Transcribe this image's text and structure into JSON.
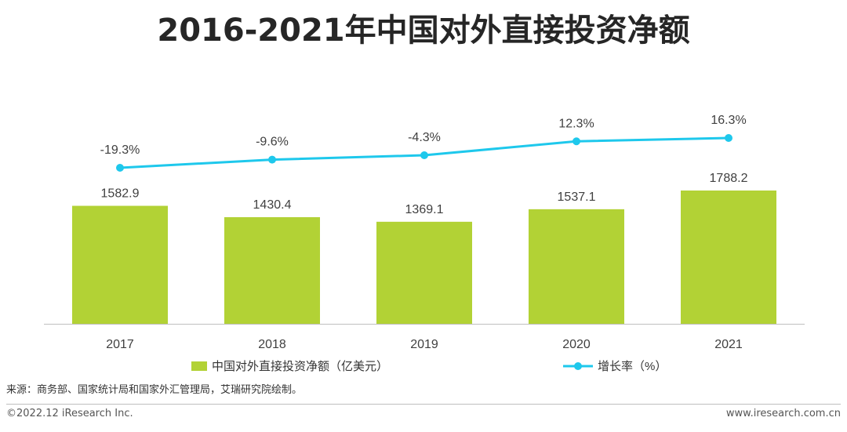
{
  "chart_data": {
    "type": "bar",
    "title": "2016-2021年中国对外直接投资净额",
    "categories": [
      "2017",
      "2018",
      "2019",
      "2020",
      "2021"
    ],
    "series": [
      {
        "name": "中国对外直接投资净额（亿美元）",
        "kind": "bar",
        "values": [
          1582.9,
          1430.4,
          1369.1,
          1537.1,
          1788.2
        ],
        "labels": [
          "1582.9",
          "1430.4",
          "1369.1",
          "1537.1",
          "1788.2"
        ],
        "color": "#b2d235"
      },
      {
        "name": "增长率（%）",
        "kind": "line",
        "values": [
          -19.3,
          -9.6,
          -4.3,
          12.3,
          16.3
        ],
        "labels": [
          "-19.3%",
          "-9.6%",
          "-4.3%",
          "12.3%",
          "16.3%"
        ],
        "color": "#1ec8ec"
      }
    ],
    "bar_range": [
      0,
      1788.2
    ],
    "line_range": [
      -19.3,
      16.3
    ]
  },
  "footer": {
    "source": "来源：商务部、国家统计局和国家外汇管理局，艾瑞研究院绘制。",
    "copyright": "©2022.12 iResearch Inc.",
    "website": "www.iresearch.com.cn"
  }
}
